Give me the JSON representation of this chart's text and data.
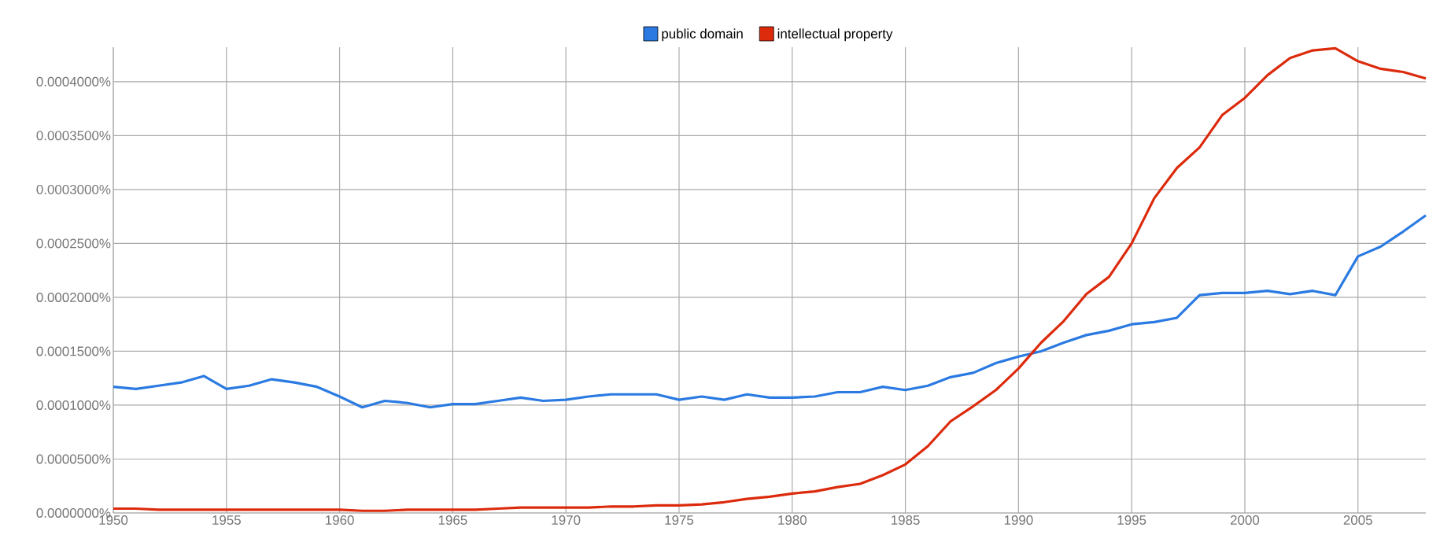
{
  "chart_data": {
    "type": "line",
    "x": [
      1950,
      1951,
      1952,
      1953,
      1954,
      1955,
      1956,
      1957,
      1958,
      1959,
      1960,
      1961,
      1962,
      1963,
      1964,
      1965,
      1966,
      1967,
      1968,
      1969,
      1970,
      1971,
      1972,
      1973,
      1974,
      1975,
      1976,
      1977,
      1978,
      1979,
      1980,
      1981,
      1982,
      1983,
      1984,
      1985,
      1986,
      1987,
      1988,
      1989,
      1990,
      1991,
      1992,
      1993,
      1994,
      1995,
      1996,
      1997,
      1998,
      1999,
      2000,
      2001,
      2002,
      2003,
      2004,
      2005,
      2006,
      2007,
      2008
    ],
    "series": [
      {
        "name": "public domain",
        "color": "#2a7ae2",
        "values": [
          0.000117,
          0.000115,
          0.000118,
          0.000121,
          0.000127,
          0.000115,
          0.000118,
          0.000124,
          0.000121,
          0.000117,
          0.000108,
          9.8e-05,
          0.000104,
          0.000102,
          9.8e-05,
          0.000101,
          0.000101,
          0.000104,
          0.000107,
          0.000104,
          0.000105,
          0.000108,
          0.00011,
          0.00011,
          0.00011,
          0.000105,
          0.000108,
          0.000105,
          0.00011,
          0.000107,
          0.000107,
          0.000108,
          0.000112,
          0.000112,
          0.000117,
          0.000114,
          0.000118,
          0.000126,
          0.00013,
          0.000139,
          0.000145,
          0.00015,
          0.000158,
          0.000165,
          0.000169,
          0.000175,
          0.000177,
          0.000181,
          0.000202,
          0.000204,
          0.000204,
          0.000206,
          0.000203,
          0.000206,
          0.000202,
          0.000238,
          0.000247,
          0.000261,
          0.000276
        ]
      },
      {
        "name": "intellectual property",
        "color": "#dc2a0c",
        "values": [
          4e-06,
          4e-06,
          3e-06,
          3e-06,
          3e-06,
          3e-06,
          3e-06,
          3e-06,
          3e-06,
          3e-06,
          3e-06,
          2e-06,
          2e-06,
          3e-06,
          3e-06,
          3e-06,
          3e-06,
          4e-06,
          5e-06,
          5e-06,
          5e-06,
          5e-06,
          6e-06,
          6e-06,
          7e-06,
          7e-06,
          8e-06,
          1e-05,
          1.3e-05,
          1.5e-05,
          1.8e-05,
          2e-05,
          2.4e-05,
          2.7e-05,
          3.5e-05,
          4.5e-05,
          6.2e-05,
          8.5e-05,
          9.9e-05,
          0.000114,
          0.000134,
          0.000158,
          0.000178,
          0.000203,
          0.000219,
          0.00025,
          0.000292,
          0.00032,
          0.000339,
          0.000369,
          0.000385,
          0.000406,
          0.000422,
          0.000429,
          0.000431,
          0.000419,
          0.000412,
          0.000409,
          0.000403
        ]
      }
    ],
    "xlim": [
      1950,
      2008
    ],
    "xticks": [
      1950,
      1955,
      1960,
      1965,
      1970,
      1975,
      1980,
      1985,
      1990,
      1995,
      2000,
      2005
    ],
    "ylim": [
      0,
      0.000432
    ],
    "yticks": [
      {
        "value": 0,
        "label": "0.0000000%"
      },
      {
        "value": 5e-05,
        "label": "0.0000500%"
      },
      {
        "value": 0.0001,
        "label": "0.0001000%"
      },
      {
        "value": 0.00015,
        "label": "0.0001500%"
      },
      {
        "value": 0.0002,
        "label": "0.0002000%"
      },
      {
        "value": 0.00025,
        "label": "0.0002500%"
      },
      {
        "value": 0.0003,
        "label": "0.0003000%"
      },
      {
        "value": 0.00035,
        "label": "0.0003500%"
      },
      {
        "value": 0.0004,
        "label": "0.0004000%"
      }
    ],
    "grid": true,
    "legend": "top",
    "line_style": "solid"
  }
}
